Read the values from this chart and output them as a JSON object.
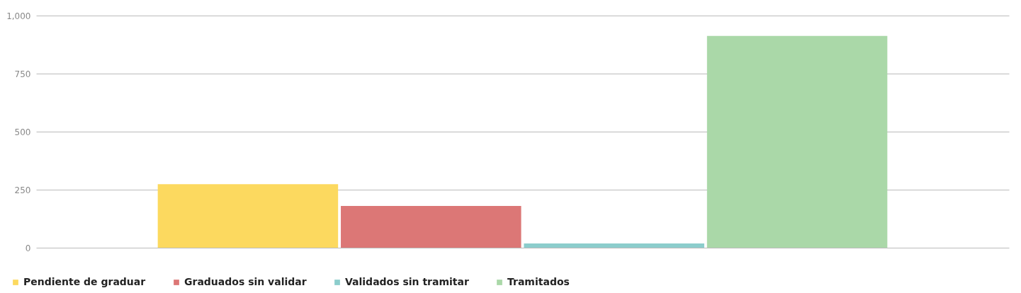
{
  "chart_data": {
    "type": "bar",
    "categories": [
      null
    ],
    "series": [
      {
        "name": "Pendiente de graduar",
        "color": "#fcd95f",
        "values": [
          274
        ]
      },
      {
        "name": "Graduados sin validar",
        "color": "#dc7776",
        "values": [
          180
        ]
      },
      {
        "name": "Validados sin tramitar",
        "color": "#8ccdcc",
        "values": [
          18
        ]
      },
      {
        "name": "Tramitados",
        "color": "#aad8a8",
        "values": [
          912
        ]
      }
    ],
    "ylim": [
      0,
      1000
    ],
    "yticks": [
      0,
      250,
      500,
      750,
      {
        "value": 1000,
        "label": "1,000"
      }
    ],
    "grid": "y",
    "legend": "bottom",
    "tick_labels": "y"
  }
}
